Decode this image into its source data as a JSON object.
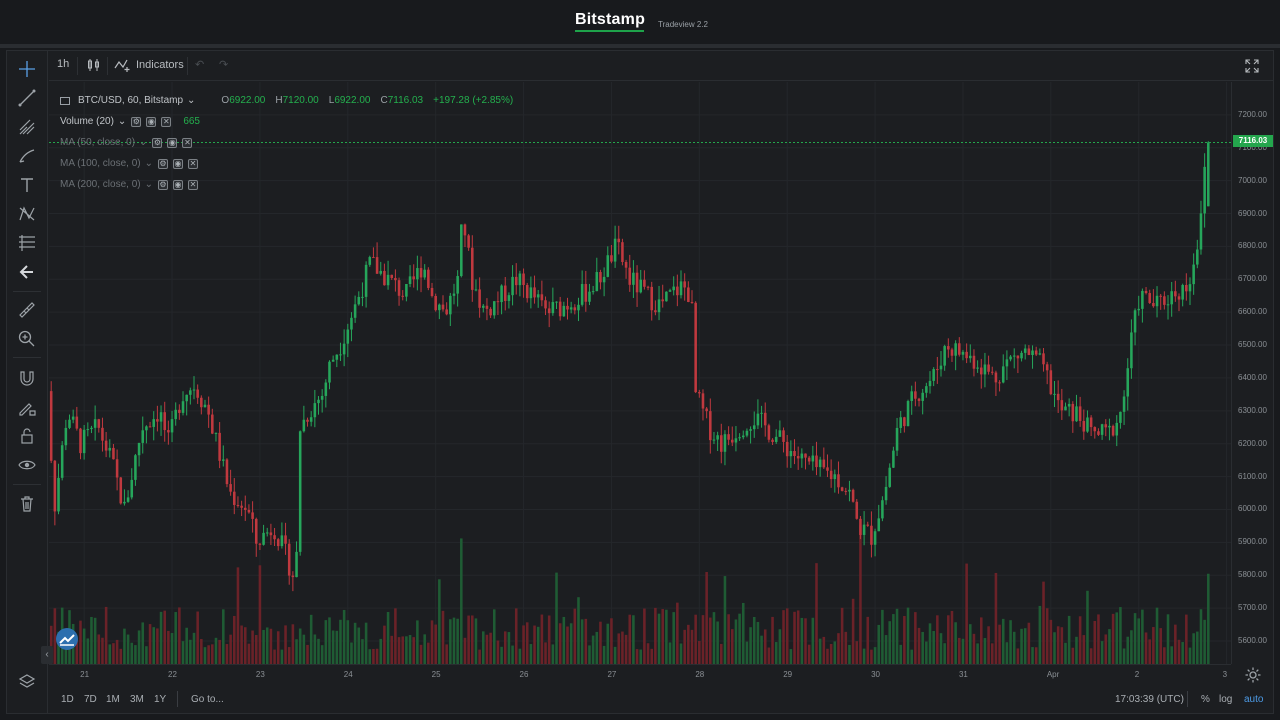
{
  "header": {
    "brand": "Bitstamp",
    "subtitle": "Tradeview 2.2",
    "brand_color": "#1ea34a"
  },
  "toolbar": {
    "interval": "1h",
    "indicators_label": "Indicators",
    "icons": [
      "candles-icon",
      "indicators-icon",
      "undo-icon",
      "redo-icon",
      "fullscreen-icon"
    ]
  },
  "left_tools": [
    "crosshair-icon",
    "trendline-icon",
    "pitchfork-icon",
    "brush-icon",
    "text-icon",
    "pattern-icon",
    "fib-icon",
    "back-arrow-icon",
    "ruler-icon",
    "zoom-icon",
    "magnet-icon",
    "lock-draw-icon",
    "lock-icon",
    "eye-icon",
    "trash-icon",
    "layers-icon"
  ],
  "legend": {
    "symbol": "BTC/USD, 60, Bitstamp",
    "open_label": "O",
    "open": "6922.00",
    "high_label": "H",
    "high": "7120.00",
    "low_label": "L",
    "low": "6922.00",
    "close_label": "C",
    "close": "7116.03",
    "change": "+197.28 (+2.85%)",
    "volume_label": "Volume (20)",
    "volume_value": "665",
    "ma1": "MA (50, close, 0)",
    "ma2": "MA (100, close, 0)",
    "ma3": "MA (200, close, 0)"
  },
  "last_price": "7116.03",
  "bottom": {
    "ranges": [
      "1D",
      "7D",
      "1M",
      "3M",
      "1Y"
    ],
    "goto": "Go to...",
    "clock": "17:03:39 (UTC)",
    "percent": "%",
    "log": "log",
    "auto": "auto"
  },
  "colors": {
    "up": "#26a65b",
    "down": "#c0393f",
    "vol_up": "#1f5c34",
    "vol_down": "#6b2228",
    "grid": "#24272b",
    "accent": "#24a64d"
  },
  "chart_data": {
    "type": "candlestick",
    "price_axis_ticks": [
      "7200.00",
      "7100.00",
      "7000.00",
      "6900.00",
      "6800.00",
      "6700.00",
      "6600.00",
      "6500.00",
      "6400.00",
      "6300.00",
      "6200.00",
      "6100.00",
      "6000.00",
      "5900.00",
      "5800.00",
      "5700.00",
      "5600.00"
    ],
    "time_axis_ticks": [
      "21",
      "22",
      "23",
      "24",
      "25",
      "26",
      "27",
      "28",
      "29",
      "30",
      "31",
      "Apr",
      "2",
      "3"
    ],
    "ylim": [
      5530,
      7300
    ],
    "price_path": [
      [
        20.5,
        6600
      ],
      [
        20.6,
        6500
      ],
      [
        20.7,
        6000
      ],
      [
        20.85,
        6300
      ],
      [
        21.0,
        6200
      ],
      [
        21.2,
        6250
      ],
      [
        21.35,
        6150
      ],
      [
        21.5,
        6000
      ],
      [
        21.7,
        6250
      ],
      [
        21.9,
        6300
      ],
      [
        22.0,
        6200
      ],
      [
        22.15,
        6350
      ],
      [
        22.3,
        6380
      ],
      [
        22.45,
        6300
      ],
      [
        22.55,
        6200
      ],
      [
        22.7,
        6050
      ],
      [
        22.9,
        6000
      ],
      [
        23.0,
        5900
      ],
      [
        23.2,
        5950
      ],
      [
        23.35,
        5850
      ],
      [
        23.45,
        5780
      ],
      [
        23.5,
        6250
      ],
      [
        23.6,
        6300
      ],
      [
        23.75,
        6350
      ],
      [
        23.85,
        6450
      ],
      [
        23.95,
        6500
      ],
      [
        24.1,
        6600
      ],
      [
        24.3,
        6750
      ],
      [
        24.5,
        6700
      ],
      [
        24.7,
        6650
      ],
      [
        24.9,
        6750
      ],
      [
        25.0,
        6650
      ],
      [
        25.15,
        6600
      ],
      [
        25.3,
        6700
      ],
      [
        25.35,
        6900
      ],
      [
        25.45,
        6700
      ],
      [
        25.6,
        6600
      ],
      [
        25.8,
        6650
      ],
      [
        25.95,
        6700
      ],
      [
        26.15,
        6650
      ],
      [
        26.3,
        6600
      ],
      [
        26.5,
        6620
      ],
      [
        26.7,
        6650
      ],
      [
        26.9,
        6700
      ],
      [
        27.0,
        6750
      ],
      [
        27.1,
        6800
      ],
      [
        27.25,
        6700
      ],
      [
        27.45,
        6650
      ],
      [
        27.6,
        6620
      ],
      [
        27.75,
        6660
      ],
      [
        27.85,
        6680
      ],
      [
        27.95,
        6650
      ],
      [
        28.0,
        6350
      ],
      [
        28.15,
        6250
      ],
      [
        28.3,
        6200
      ],
      [
        28.5,
        6250
      ],
      [
        28.65,
        6280
      ],
      [
        28.8,
        6250
      ],
      [
        29.0,
        6200
      ],
      [
        29.2,
        6150
      ],
      [
        29.4,
        6120
      ],
      [
        29.6,
        6100
      ],
      [
        29.75,
        6050
      ],
      [
        29.85,
        5950
      ],
      [
        30.0,
        5920
      ],
      [
        30.15,
        6050
      ],
      [
        30.3,
        6250
      ],
      [
        30.5,
        6350
      ],
      [
        30.7,
        6400
      ],
      [
        30.85,
        6500
      ],
      [
        31.0,
        6480
      ],
      [
        31.2,
        6450
      ],
      [
        31.4,
        6400
      ],
      [
        31.55,
        6450
      ],
      [
        31.75,
        6480
      ],
      [
        31.9,
        6450
      ],
      [
        32.0,
        6400
      ],
      [
        32.15,
        6300
      ],
      [
        32.35,
        6290
      ],
      [
        32.5,
        6230
      ],
      [
        32.7,
        6230
      ],
      [
        32.85,
        6300
      ],
      [
        32.95,
        6500
      ],
      [
        33.05,
        6650
      ],
      [
        33.25,
        6620
      ],
      [
        33.45,
        6660
      ],
      [
        33.6,
        6680
      ],
      [
        33.7,
        6800
      ],
      [
        33.78,
        6920
      ],
      [
        33.8,
        7116
      ]
    ]
  }
}
